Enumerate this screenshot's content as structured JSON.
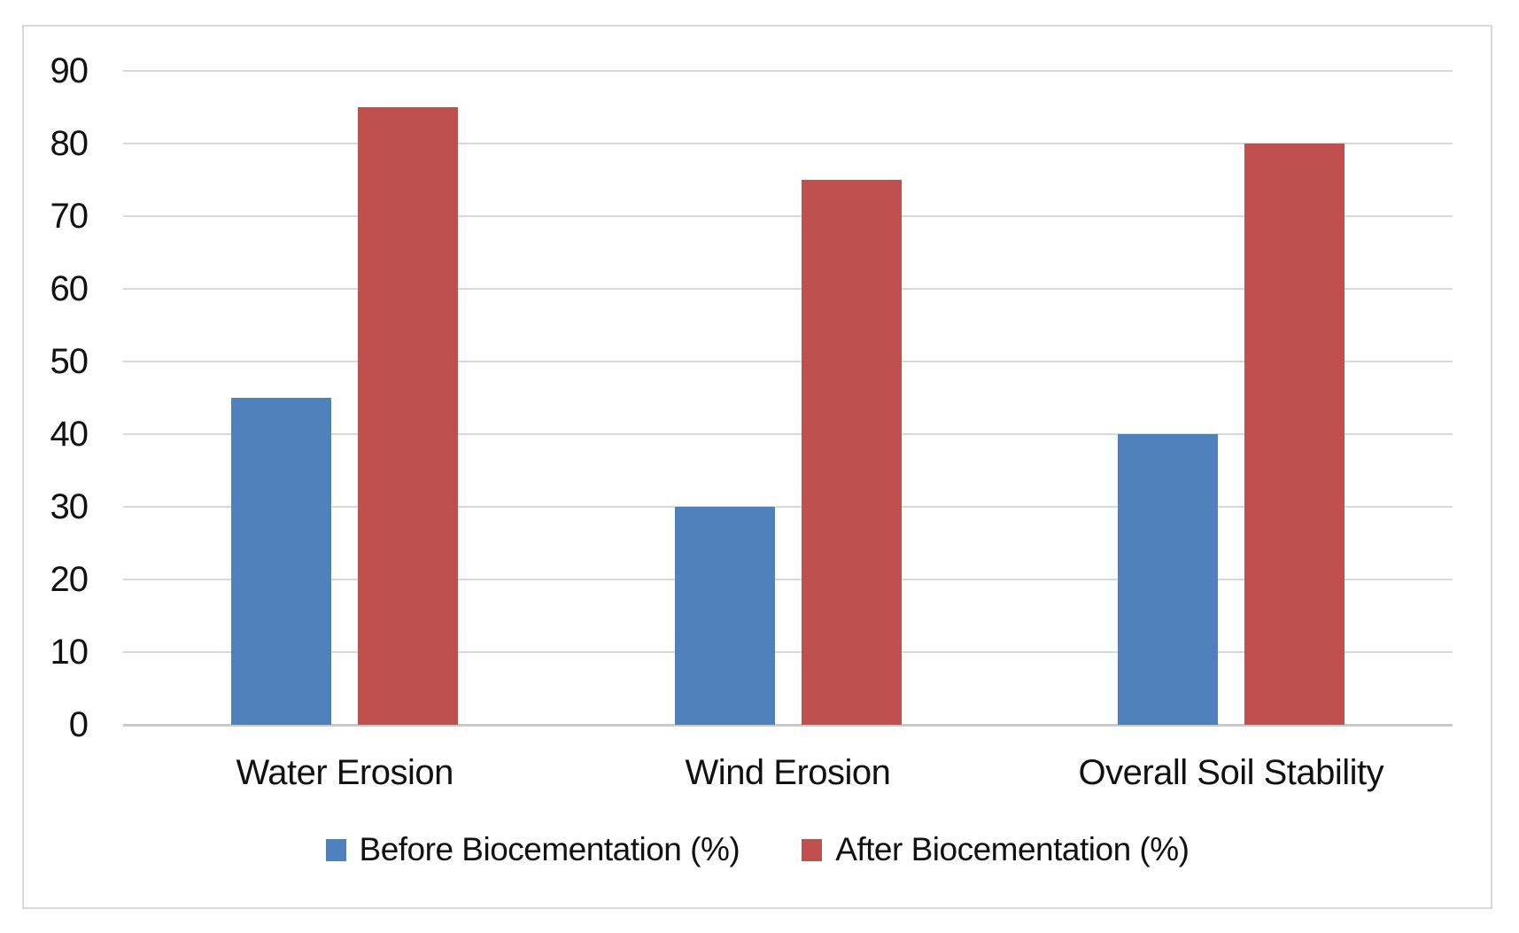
{
  "chart_data": {
    "type": "bar",
    "title": "",
    "xlabel": "",
    "ylabel": "",
    "categories": [
      "Water Erosion",
      "Wind Erosion",
      "Overall Soil Stability"
    ],
    "series": [
      {
        "name": "Before Biocementation (%)",
        "color": "#4F81BD",
        "values": [
          45,
          30,
          40
        ]
      },
      {
        "name": "After Biocementation (%)",
        "color": "#C0504D",
        "values": [
          85,
          75,
          80
        ]
      }
    ],
    "ylim": [
      0,
      90
    ],
    "yticks": [
      0,
      10,
      20,
      30,
      40,
      50,
      60,
      70,
      80,
      90
    ],
    "grid": true,
    "legend_position": "bottom"
  },
  "colors": {
    "gridline": "#D9D9D9",
    "baseline": "#C9C9C9",
    "frame_border": "#D9D9D9",
    "text": "#111111",
    "background": "#FFFFFF"
  }
}
